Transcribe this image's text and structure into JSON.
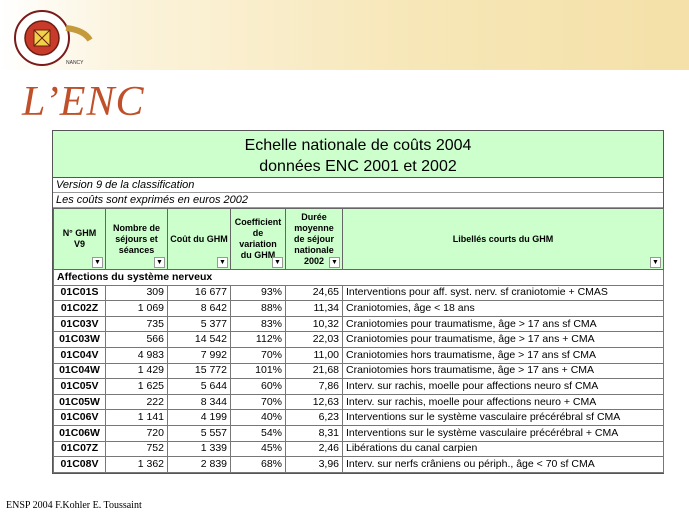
{
  "logo": {
    "text_arc": "Université HENRI POINCARÉ",
    "text_bottom": "NANCY"
  },
  "slide_title": "L’ENC",
  "sheet": {
    "title_line1": "Echelle nationale de coûts 2004",
    "title_line2": "données ENC 2001 et 2002",
    "note1": "Version 9 de la classification",
    "note2": "Les coûts sont exprimés en euros 2002",
    "headers": [
      "N° GHM V9",
      "Nombre de séjours et séances",
      "Coût du GHM",
      "Coefficient de variation du GHM",
      "Durée moyenne de séjour nationale 2002",
      "Libellés courts du GHM"
    ],
    "filter_glyph": "▼",
    "section": "Affections du système nerveux",
    "rows": [
      {
        "code": "01C01S",
        "nb": "309",
        "cout": "16 677",
        "cv": "93%",
        "dms": "24,65",
        "lib": "Interventions pour aff. syst. nerv. sf craniotomie + CMAS"
      },
      {
        "code": "01C02Z",
        "nb": "1 069",
        "cout": "8 642",
        "cv": "88%",
        "dms": "11,34",
        "lib": "Craniotomies, âge < 18 ans"
      },
      {
        "code": "01C03V",
        "nb": "735",
        "cout": "5 377",
        "cv": "83%",
        "dms": "10,32",
        "lib": "Craniotomies pour traumatisme, âge > 17 ans sf CMA"
      },
      {
        "code": "01C03W",
        "nb": "566",
        "cout": "14 542",
        "cv": "112%",
        "dms": "22,03",
        "lib": "Craniotomies pour traumatisme, âge > 17 ans + CMA"
      },
      {
        "code": "01C04V",
        "nb": "4 983",
        "cout": "7 992",
        "cv": "70%",
        "dms": "11,00",
        "lib": "Craniotomies hors traumatisme, âge > 17 ans sf CMA"
      },
      {
        "code": "01C04W",
        "nb": "1 429",
        "cout": "15 772",
        "cv": "101%",
        "dms": "21,68",
        "lib": "Craniotomies hors traumatisme, âge > 17 ans + CMA"
      },
      {
        "code": "01C05V",
        "nb": "1 625",
        "cout": "5 644",
        "cv": "60%",
        "dms": "7,86",
        "lib": "Interv. sur rachis, moelle pour affections neuro sf CMA"
      },
      {
        "code": "01C05W",
        "nb": "222",
        "cout": "8 344",
        "cv": "70%",
        "dms": "12,63",
        "lib": "Interv. sur rachis, moelle pour affections neuro + CMA"
      },
      {
        "code": "01C06V",
        "nb": "1 141",
        "cout": "4 199",
        "cv": "40%",
        "dms": "6,23",
        "lib": "Interventions sur le système vasculaire précérébral sf CMA"
      },
      {
        "code": "01C06W",
        "nb": "720",
        "cout": "5 557",
        "cv": "54%",
        "dms": "8,31",
        "lib": "Interventions sur le système vasculaire précérébral + CMA"
      },
      {
        "code": "01C07Z",
        "nb": "752",
        "cout": "1 339",
        "cv": "45%",
        "dms": "2,46",
        "lib": "Libérations du canal carpien"
      },
      {
        "code": "01C08V",
        "nb": "1 362",
        "cout": "2 839",
        "cv": "68%",
        "dms": "3,96",
        "lib": "Interv. sur nerfs crâniens ou périph., âge < 70 sf CMA"
      }
    ]
  },
  "footer": "ENSP 2004 F.Kohler E. Toussaint"
}
